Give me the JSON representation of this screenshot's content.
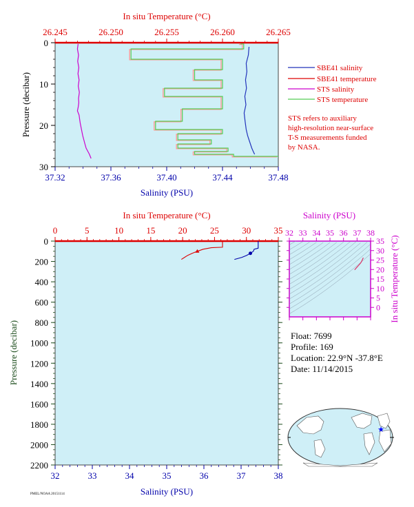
{
  "colors": {
    "red": "#dd0000",
    "blue": "#0000aa",
    "magenta": "#cc00cc",
    "green": "#006600",
    "plot_bg": "#cfeff7",
    "sbe_salinity": "#2233bb",
    "sbe_temperature": "#dd0000",
    "sts_salinity": "#cc00cc",
    "sts_temperature_a": "#ff9999",
    "sts_temperature_b": "#55cc55"
  },
  "top": {
    "x_top_label": "In situ Temperature (°C)",
    "x_bottom_label": "Salinity (PSU)",
    "y_label": "Pressure (decibar)",
    "legend": [
      {
        "label": "SBE41 salinity",
        "color": "#2233bb"
      },
      {
        "label": "SBE41 temperature",
        "color": "#dd0000"
      },
      {
        "label": "STS salinity",
        "color": "#cc00cc"
      },
      {
        "label": "STS temperature",
        "color": "#55cc55"
      }
    ],
    "note": [
      "STS refers to auxiliary",
      "high-resolution near-surface",
      "T-S measurements funded",
      "by NASA."
    ]
  },
  "bottom": {
    "x_top_label": "In situ Temperature (°C)",
    "x_bottom_label": "Salinity (PSU)",
    "y_label": "Pressure (decibar)"
  },
  "ts": {
    "x_label": "Salinity (PSU)",
    "y_label": "In situ Temperature (°C)"
  },
  "info": {
    "float": "Float:  7699",
    "profile": "Profile:  169",
    "location": "Location:  22.9°N  -37.8°E",
    "date": "Date:  11/14/2015"
  },
  "footer": "PMEL/NOAA 20151114",
  "chart_data": [
    {
      "type": "line",
      "panel": "top-profile",
      "xlabel_bottom": "Salinity (PSU)",
      "xlabel_top": "In situ Temperature (°C)",
      "ylabel": "Pressure (decibar)",
      "xlim_salinity": [
        37.32,
        37.48
      ],
      "xticks_salinity": [
        "37.32",
        "37.36",
        "37.40",
        "37.44",
        "37.48"
      ],
      "xlim_temperature": [
        26.245,
        26.265
      ],
      "xticks_temperature": [
        "26.245",
        "26.250",
        "26.255",
        "26.260",
        "26.265"
      ],
      "ylim": [
        0,
        30
      ],
      "yticks": [
        "0",
        "10",
        "20",
        "30"
      ],
      "series": [
        {
          "name": "STS salinity",
          "axis": "salinity",
          "color": "#cc00cc",
          "x": [
            37.3365,
            37.336,
            37.3368,
            37.3362,
            37.337,
            37.3364,
            37.3372,
            37.3366,
            37.3374,
            37.3368,
            37.337,
            37.3366,
            37.336,
            37.3372,
            37.3376,
            37.338,
            37.3386,
            37.3392,
            37.3398,
            37.3406,
            37.3414,
            37.3422,
            37.343,
            37.3438,
            37.3446,
            37.3452,
            37.3458
          ],
          "y": [
            0.3,
            1.5,
            3,
            4.5,
            6,
            7.5,
            9,
            10.5,
            12,
            13.5,
            14.5,
            15.5,
            16.5,
            17.5,
            18.5,
            19.5,
            20.5,
            21.5,
            22.5,
            23.5,
            24.5,
            25.5,
            26,
            26.5,
            27,
            27.5,
            28
          ]
        },
        {
          "name": "SBE41 salinity",
          "axis": "salinity",
          "color": "#2233bb",
          "x": [
            37.459,
            37.4585,
            37.457,
            37.4575,
            37.4565,
            37.4572,
            37.456,
            37.4568,
            37.4555,
            37.4562,
            37.457,
            37.458,
            37.459,
            37.46,
            37.461,
            37.462,
            37.463
          ],
          "y": [
            1,
            3,
            5,
            7,
            9,
            11,
            13,
            15,
            17,
            19,
            21,
            22.5,
            23.5,
            24.5,
            25.5,
            26.3,
            27
          ]
        },
        {
          "name": "STS temperature",
          "axis": "temperature",
          "color": "#55cc55",
          "x": [
            26.2616,
            26.2619,
            26.2619,
            26.2518,
            26.2518,
            26.26,
            26.26,
            26.2575,
            26.2575,
            26.26,
            26.26,
            26.2548,
            26.2548,
            26.26,
            26.26,
            26.2564,
            26.2564,
            26.254,
            26.254,
            26.26,
            26.26,
            26.256,
            26.256,
            26.259,
            26.259,
            26.256,
            26.256,
            26.2605,
            26.2605,
            26.2575,
            26.2575,
            26.261,
            26.261,
            26.265,
            26.262
          ],
          "y": [
            0.3,
            0.3,
            1.5,
            1.5,
            4,
            4,
            6.5,
            6.5,
            9,
            9,
            11,
            11,
            13,
            13,
            16,
            16,
            19,
            19,
            21,
            21,
            22,
            22,
            23.5,
            23.5,
            24.5,
            24.5,
            25.5,
            25.5,
            26.3,
            26.3,
            27,
            27,
            27.5,
            27.5,
            27.5
          ]
        }
      ]
    },
    {
      "type": "line",
      "panel": "bottom-profile",
      "xlabel_bottom": "Salinity (PSU)",
      "xlabel_top": "In situ Temperature (°C)",
      "ylabel": "Pressure (decibar)",
      "xlim_salinity": [
        32,
        38
      ],
      "xticks_salinity": [
        "32",
        "33",
        "34",
        "35",
        "36",
        "37",
        "38"
      ],
      "xlim_temperature": [
        0,
        35
      ],
      "xticks_temperature": [
        "0",
        "5",
        "10",
        "15",
        "20",
        "25",
        "30",
        "35"
      ],
      "ylim": [
        0,
        2200
      ],
      "yticks": [
        "0",
        "200",
        "400",
        "600",
        "800",
        "1000",
        "1200",
        "1400",
        "1600",
        "1800",
        "2000",
        "2200"
      ],
      "series": [
        {
          "axis": "temperature",
          "color": "#dd0000",
          "x": [
            26.25,
            26.25,
            24.5,
            23.2,
            22.3,
            21.5,
            20.8,
            20.3,
            19.8
          ],
          "y": [
            0,
            60,
            65,
            80,
            100,
            120,
            140,
            160,
            180
          ]
        },
        {
          "axis": "salinity",
          "color": "#0000aa",
          "x": [
            37.46,
            37.46,
            37.46,
            37.35,
            37.33,
            37.25,
            37.15,
            37.02,
            36.92,
            36.82
          ],
          "y": [
            0,
            60,
            70,
            80,
            100,
            120,
            140,
            160,
            170,
            180
          ]
        }
      ]
    },
    {
      "type": "line",
      "panel": "ts-diagram",
      "xlabel": "Salinity (PSU)",
      "ylabel": "In situ Temperature (°C)",
      "xlim": [
        32,
        38
      ],
      "xticks": [
        "32",
        "33",
        "34",
        "35",
        "36",
        "37",
        "38"
      ],
      "ylim": [
        -5,
        35
      ],
      "yticks": [
        "0",
        "5",
        "10",
        "15",
        "20",
        "25",
        "30",
        "35"
      ],
      "series": [
        {
          "color": "#dd3366",
          "x": [
            36.82,
            36.9,
            37.0,
            37.1,
            37.2,
            37.3,
            37.35,
            37.4,
            37.46
          ],
          "y": [
            19.8,
            20.5,
            21.3,
            22.1,
            22.9,
            23.8,
            24.5,
            25.3,
            26.25
          ]
        }
      ]
    }
  ]
}
